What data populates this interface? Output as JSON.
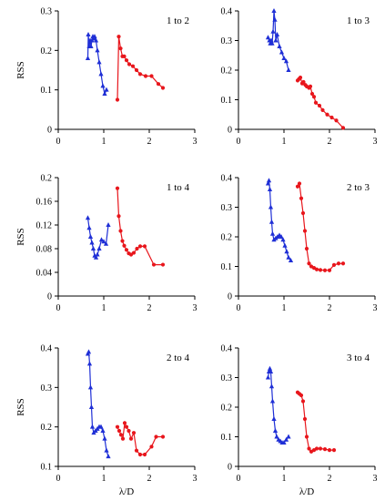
{
  "colors": {
    "blue": "#1f2fd6",
    "red": "#e8161c",
    "axis": "#000000"
  },
  "chart_data": [
    {
      "type": "line",
      "label": "1 to 2",
      "xlim": [
        0,
        3
      ],
      "ylim": [
        0,
        0.3
      ],
      "xticks": [
        "0",
        "1",
        "2",
        "3"
      ],
      "yticks": [
        "0",
        "0.1",
        "0.2",
        "0.3"
      ],
      "ylabel": "RSS",
      "xlabel": "",
      "series": [
        {
          "color": "blue",
          "marker": "triangle",
          "x": [
            0.65,
            0.66,
            0.68,
            0.7,
            0.72,
            0.74,
            0.76,
            0.78,
            0.8,
            0.83,
            0.86,
            0.9,
            0.94,
            0.98,
            1.02,
            1.06
          ],
          "y": [
            0.18,
            0.24,
            0.21,
            0.225,
            0.21,
            0.225,
            0.235,
            0.23,
            0.235,
            0.225,
            0.2,
            0.17,
            0.14,
            0.11,
            0.09,
            0.1
          ]
        },
        {
          "color": "red",
          "marker": "circle",
          "x": [
            1.3,
            1.33,
            1.37,
            1.41,
            1.45,
            1.5,
            1.56,
            1.64,
            1.72,
            1.8,
            1.92,
            2.05,
            2.2,
            2.3
          ],
          "y": [
            0.075,
            0.235,
            0.205,
            0.185,
            0.185,
            0.175,
            0.165,
            0.16,
            0.15,
            0.14,
            0.135,
            0.135,
            0.115,
            0.105
          ]
        }
      ]
    },
    {
      "type": "line",
      "label": "1 to 3",
      "xlim": [
        0,
        3
      ],
      "ylim": [
        0,
        0.4
      ],
      "xticks": [
        "0",
        "1",
        "2",
        "3"
      ],
      "yticks": [
        "0",
        "0.1",
        "0.2",
        "0.3",
        "0.4"
      ],
      "ylabel": "",
      "xlabel": "",
      "series": [
        {
          "color": "blue",
          "marker": "triangle",
          "x": [
            0.65,
            0.68,
            0.7,
            0.72,
            0.74,
            0.76,
            0.78,
            0.8,
            0.82,
            0.85,
            0.9,
            0.95,
            1.0,
            1.05,
            1.1
          ],
          "y": [
            0.31,
            0.3,
            0.29,
            0.3,
            0.29,
            0.33,
            0.4,
            0.37,
            0.3,
            0.32,
            0.28,
            0.26,
            0.24,
            0.23,
            0.2
          ]
        },
        {
          "color": "red",
          "marker": "circle",
          "x": [
            1.3,
            1.33,
            1.36,
            1.4,
            1.43,
            1.47,
            1.5,
            1.55,
            1.58,
            1.62,
            1.66,
            1.7,
            1.78,
            1.85,
            1.95,
            2.05,
            2.15,
            2.3
          ],
          "y": [
            0.165,
            0.17,
            0.175,
            0.155,
            0.16,
            0.15,
            0.145,
            0.14,
            0.145,
            0.12,
            0.11,
            0.09,
            0.08,
            0.065,
            0.05,
            0.04,
            0.03,
            0.005
          ]
        }
      ]
    },
    {
      "type": "line",
      "label": "1 to 4",
      "xlim": [
        0,
        3
      ],
      "ylim": [
        0,
        0.2
      ],
      "xticks": [
        "0",
        "1",
        "2",
        "3"
      ],
      "yticks": [
        "0",
        "0.04",
        "0.08",
        "0.12",
        "0.16",
        "0.2"
      ],
      "ylabel": "RSS",
      "xlabel": "",
      "series": [
        {
          "color": "blue",
          "marker": "triangle",
          "x": [
            0.65,
            0.68,
            0.71,
            0.74,
            0.77,
            0.8,
            0.83,
            0.86,
            0.9,
            0.95,
            1.0,
            1.05,
            1.1
          ],
          "y": [
            0.132,
            0.115,
            0.1,
            0.09,
            0.08,
            0.068,
            0.065,
            0.07,
            0.08,
            0.095,
            0.092,
            0.088,
            0.12
          ]
        },
        {
          "color": "red",
          "marker": "circle",
          "x": [
            1.3,
            1.33,
            1.37,
            1.41,
            1.45,
            1.5,
            1.55,
            1.6,
            1.66,
            1.73,
            1.8,
            1.9,
            2.1,
            2.3
          ],
          "y": [
            0.182,
            0.135,
            0.11,
            0.093,
            0.085,
            0.078,
            0.072,
            0.07,
            0.073,
            0.08,
            0.084,
            0.084,
            0.053,
            0.053
          ]
        }
      ]
    },
    {
      "type": "line",
      "label": "2 to 3",
      "xlim": [
        0,
        3
      ],
      "ylim": [
        0,
        0.4
      ],
      "xticks": [
        "0",
        "1",
        "2",
        "3"
      ],
      "yticks": [
        "0",
        "0.1",
        "0.2",
        "0.3",
        "0.4"
      ],
      "ylabel": "",
      "xlabel": "",
      "series": [
        {
          "color": "blue",
          "marker": "triangle",
          "x": [
            0.65,
            0.67,
            0.69,
            0.71,
            0.73,
            0.75,
            0.78,
            0.82,
            0.86,
            0.9,
            0.94,
            0.98,
            1.02,
            1.06,
            1.1,
            1.15
          ],
          "y": [
            0.38,
            0.39,
            0.36,
            0.3,
            0.25,
            0.21,
            0.19,
            0.195,
            0.2,
            0.205,
            0.2,
            0.19,
            0.17,
            0.15,
            0.13,
            0.12
          ]
        },
        {
          "color": "red",
          "marker": "circle",
          "x": [
            1.3,
            1.34,
            1.38,
            1.42,
            1.46,
            1.5,
            1.55,
            1.6,
            1.66,
            1.72,
            1.8,
            1.9,
            2.0,
            2.1,
            2.2,
            2.3
          ],
          "y": [
            0.37,
            0.38,
            0.33,
            0.28,
            0.22,
            0.16,
            0.11,
            0.1,
            0.095,
            0.09,
            0.088,
            0.087,
            0.087,
            0.105,
            0.11,
            0.11
          ]
        }
      ]
    },
    {
      "type": "line",
      "label": "2 to 4",
      "xlim": [
        0,
        3
      ],
      "ylim": [
        0.1,
        0.4
      ],
      "xticks": [
        "0",
        "1",
        "2",
        "3"
      ],
      "yticks": [
        "0.1",
        "0.2",
        "0.3",
        "0.4"
      ],
      "ylabel": "RSS",
      "xlabel": "λ/D",
      "series": [
        {
          "color": "blue",
          "marker": "triangle",
          "x": [
            0.65,
            0.67,
            0.69,
            0.71,
            0.73,
            0.75,
            0.78,
            0.82,
            0.86,
            0.9,
            0.94,
            0.98,
            1.02,
            1.06,
            1.1
          ],
          "y": [
            0.385,
            0.39,
            0.36,
            0.3,
            0.25,
            0.2,
            0.185,
            0.19,
            0.195,
            0.2,
            0.2,
            0.19,
            0.17,
            0.14,
            0.125
          ]
        },
        {
          "color": "red",
          "marker": "circle",
          "x": [
            1.3,
            1.34,
            1.38,
            1.42,
            1.46,
            1.5,
            1.55,
            1.6,
            1.66,
            1.72,
            1.8,
            1.9,
            2.05,
            2.15,
            2.3
          ],
          "y": [
            0.2,
            0.19,
            0.18,
            0.17,
            0.21,
            0.2,
            0.19,
            0.17,
            0.185,
            0.14,
            0.13,
            0.13,
            0.15,
            0.175,
            0.175
          ]
        }
      ]
    },
    {
      "type": "line",
      "label": "3 to 4",
      "xlim": [
        0,
        3
      ],
      "ylim": [
        0,
        0.4
      ],
      "xticks": [
        "0",
        "1",
        "2",
        "3"
      ],
      "yticks": [
        "0",
        "0.1",
        "0.2",
        "0.3",
        "0.4"
      ],
      "ylabel": "",
      "xlabel": "λ/D",
      "series": [
        {
          "color": "blue",
          "marker": "triangle",
          "x": [
            0.65,
            0.67,
            0.69,
            0.71,
            0.73,
            0.75,
            0.78,
            0.81,
            0.84,
            0.88,
            0.92,
            0.96,
            1.0,
            1.05,
            1.1
          ],
          "y": [
            0.3,
            0.32,
            0.33,
            0.32,
            0.27,
            0.22,
            0.16,
            0.12,
            0.1,
            0.09,
            0.085,
            0.08,
            0.08,
            0.09,
            0.1
          ]
        },
        {
          "color": "red",
          "marker": "circle",
          "x": [
            1.3,
            1.34,
            1.38,
            1.42,
            1.46,
            1.5,
            1.55,
            1.6,
            1.66,
            1.72,
            1.8,
            1.9,
            2.0,
            2.1
          ],
          "y": [
            0.25,
            0.245,
            0.24,
            0.22,
            0.16,
            0.1,
            0.06,
            0.05,
            0.055,
            0.06,
            0.06,
            0.058,
            0.055,
            0.055
          ]
        }
      ]
    }
  ]
}
